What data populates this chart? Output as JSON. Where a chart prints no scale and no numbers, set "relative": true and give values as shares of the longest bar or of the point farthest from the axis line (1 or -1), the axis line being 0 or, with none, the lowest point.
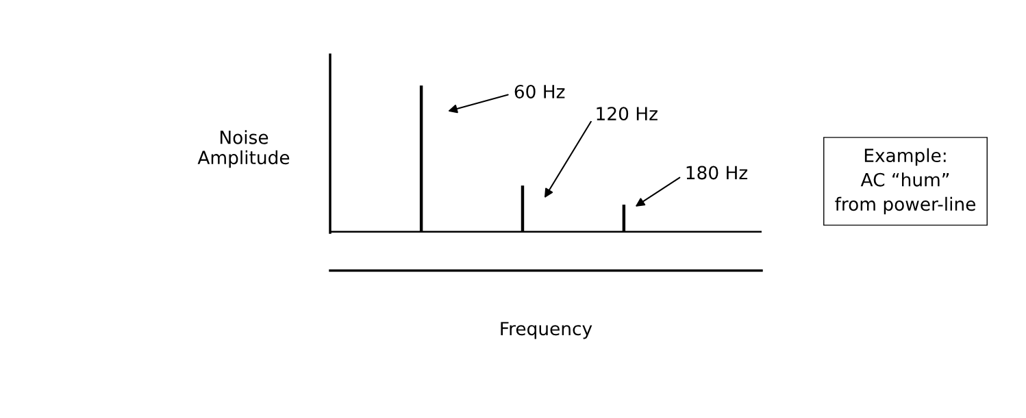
{
  "chart_data": {
    "type": "bar",
    "relative": true,
    "xlabel": "Frequency",
    "ylabel": "Noise\nAmplitude",
    "categories": [
      null,
      null,
      null
    ],
    "values": [
      1,
      0.32,
      0.19
    ],
    "color": "#000000",
    "ref_lines": [
      {
        "axis": "y",
        "value": 0,
        "color": "#000000"
      }
    ],
    "annotations": [
      "60 Hz",
      "120 Hz",
      "180 Hz",
      "Example:\nAC “hum”\nfrom power-line"
    ],
    "grid": false,
    "legend": false
  }
}
